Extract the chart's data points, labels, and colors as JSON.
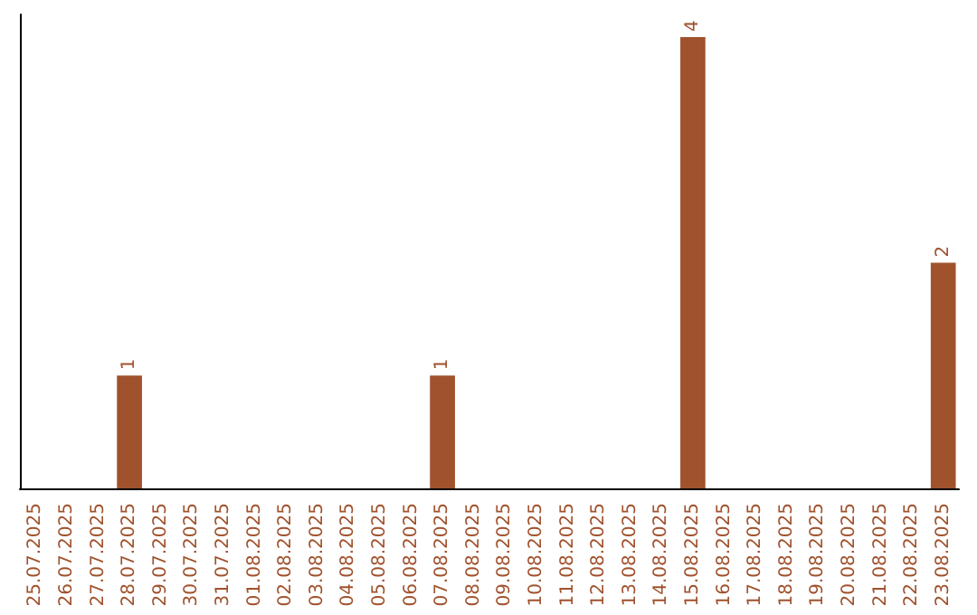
{
  "chart_data": {
    "type": "bar",
    "categories": [
      "25.07.2025",
      "26.07.2025",
      "27.07.2025",
      "28.07.2025",
      "29.07.2025",
      "30.07.2025",
      "31.07.2025",
      "01.08.2025",
      "02.08.2025",
      "03.08.2025",
      "04.08.2025",
      "05.08.2025",
      "06.08.2025",
      "07.08.2025",
      "08.08.2025",
      "09.08.2025",
      "10.08.2025",
      "11.08.2025",
      "12.08.2025",
      "13.08.2025",
      "14.08.2025",
      "15.08.2025",
      "16.08.2025",
      "17.08.2025",
      "18.08.2025",
      "19.08.2025",
      "20.08.2025",
      "21.08.2025",
      "22.08.2025",
      "23.08.2025"
    ],
    "values": [
      0,
      0,
      0,
      1,
      0,
      0,
      0,
      0,
      0,
      0,
      0,
      0,
      0,
      1,
      0,
      0,
      0,
      0,
      0,
      0,
      0,
      4,
      0,
      0,
      0,
      0,
      0,
      0,
      0,
      2
    ],
    "value_labels": [
      null,
      null,
      null,
      "1",
      null,
      null,
      null,
      null,
      null,
      null,
      null,
      null,
      null,
      "1",
      null,
      null,
      null,
      null,
      null,
      null,
      null,
      "4",
      null,
      null,
      null,
      null,
      null,
      null,
      null,
      "2"
    ],
    "color": "#a0522d"
  }
}
